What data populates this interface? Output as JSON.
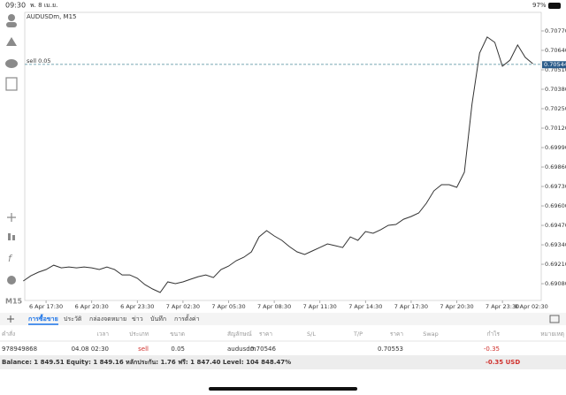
{
  "status_bar": {
    "time": "09:30",
    "date": "พ. 8 เม.ย.",
    "battery": "97%"
  },
  "toolbar": {
    "timeframe": "M15"
  },
  "chart_data": {
    "type": "line",
    "title": "AUDUSDm, M15",
    "color": "#333333",
    "values": [
      0.69098,
      0.69133,
      0.69157,
      0.69175,
      0.69204,
      0.69186,
      0.69192,
      0.69186,
      0.69192,
      0.69186,
      0.69175,
      0.69192,
      0.69175,
      0.69139,
      0.69139,
      0.69116,
      0.69074,
      0.69045,
      0.69021,
      0.69092,
      0.6908,
      0.69092,
      0.6911,
      0.69127,
      0.69139,
      0.69121,
      0.69175,
      0.69198,
      0.69234,
      0.69257,
      0.69293,
      0.69393,
      0.69435,
      0.69399,
      0.6937,
      0.69328,
      0.69293,
      0.69275,
      0.69299,
      0.69322,
      0.69346,
      0.69334,
      0.69322,
      0.69393,
      0.6937,
      0.69429,
      0.69417,
      0.69441,
      0.6947,
      0.69476,
      0.69511,
      0.69529,
      0.69553,
      0.69618,
      0.69701,
      0.69742,
      0.69742,
      0.69724,
      0.69825,
      0.7028,
      0.70622,
      0.70729,
      0.70693,
      0.70534,
      0.70575,
      0.70676,
      0.70593,
      0.70551
    ],
    "xlim": [
      0.2,
      68.1
    ],
    "xticks": [
      {
        "value": 3,
        "label": "6 Apr 17:30"
      },
      {
        "value": 9,
        "label": "6 Apr 20:30"
      },
      {
        "value": 15,
        "label": "6 Apr 23:30"
      },
      {
        "value": 21,
        "label": "7 Apr 02:30"
      },
      {
        "value": 27,
        "label": "7 Apr 05:30"
      },
      {
        "value": 33,
        "label": "7 Apr 08:30"
      },
      {
        "value": 39,
        "label": "7 Apr 11:30"
      },
      {
        "value": 45,
        "label": "7 Apr 14:30"
      },
      {
        "value": 51,
        "label": "7 Apr 17:30"
      },
      {
        "value": 57,
        "label": "7 Apr 20:30"
      },
      {
        "value": 63,
        "label": "7 Apr 23:30"
      },
      {
        "value": 69,
        "label": "8 Apr 02:30"
      }
    ],
    "ylim": [
      0.68968,
      0.70894
    ],
    "yticks": [
      {
        "value": 0.7077,
        "label": "0.70770"
      },
      {
        "value": 0.7064,
        "label": "0.70640"
      },
      {
        "value": 0.7051,
        "label": "0.70510"
      },
      {
        "value": 0.7038,
        "label": "0.70380"
      },
      {
        "value": 0.7025,
        "label": "0.70250"
      },
      {
        "value": 0.7012,
        "label": "0.70120"
      },
      {
        "value": 0.6999,
        "label": "0.69990"
      },
      {
        "value": 0.6986,
        "label": "0.69860"
      },
      {
        "value": 0.6973,
        "label": "0.69730"
      },
      {
        "value": 0.696,
        "label": "0.69600"
      },
      {
        "value": 0.6947,
        "label": "0.69470"
      },
      {
        "value": 0.6934,
        "label": "0.69340"
      },
      {
        "value": 0.6921,
        "label": "0.69210"
      },
      {
        "value": 0.6908,
        "label": "0.69080"
      }
    ],
    "price_label": {
      "value": 0.70544,
      "label": "0.70544"
    },
    "order_line": {
      "value": 0.70546,
      "label": "sell 0.05"
    }
  },
  "tabs": [
    "การซื้อขาย",
    "ประวัติ",
    "กล่องจดหมาย",
    "ข่าว",
    "บันทึก",
    "การตั้งค่า"
  ],
  "table": {
    "headers": [
      "คำสั่ง",
      "เวลา",
      "ประเภท",
      "ขนาด",
      "สัญลักษณ์",
      "ราคา",
      "S/L",
      "T/P",
      "ราคา",
      "Swap",
      "กำไร",
      "หมายเหตุ"
    ],
    "rows": [
      [
        "978949868",
        "04.08 02:30",
        "sell",
        "0.05",
        "audusdm",
        "0.70546",
        "",
        "",
        "0.70553",
        "",
        "-0.35",
        ""
      ]
    ]
  },
  "balance": {
    "text": "Balance: 1 849.51 Equity: 1 849.16 หลักประกัน: 1.76 ฟรี: 1 847.40 Level: 104 848.47%",
    "profit": "-0.35 USD"
  }
}
